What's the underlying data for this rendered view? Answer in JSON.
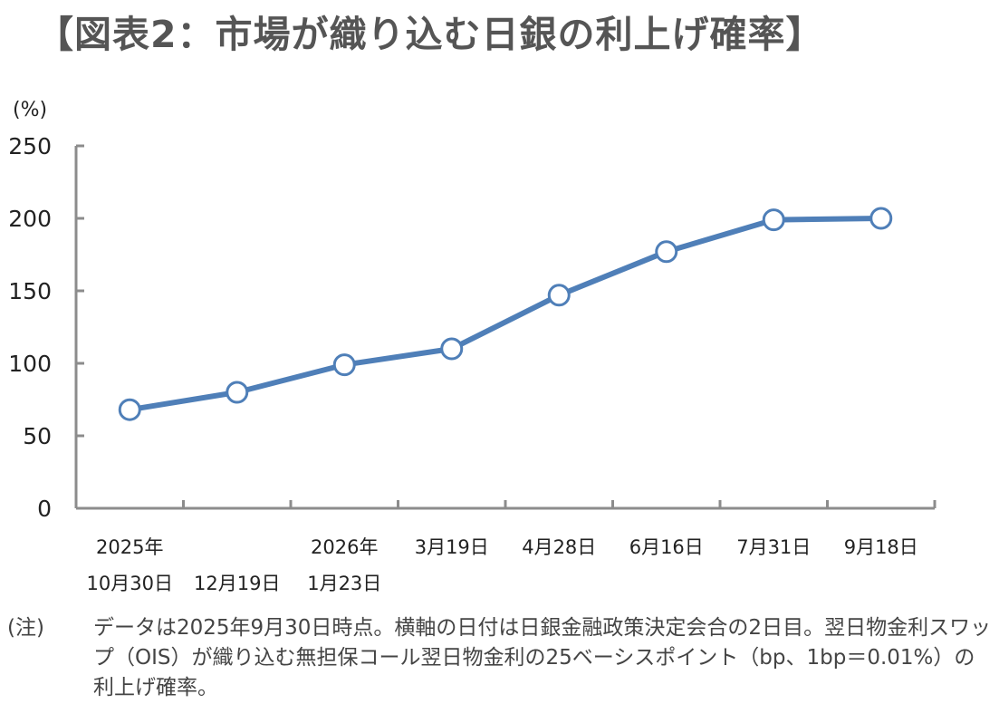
{
  "title": "【図表2：市場が織り込む日銀の利上げ確率】",
  "chart_data": {
    "type": "line",
    "title": "【図表2：市場が織り込む日銀の利上げ確率】",
    "ylabel": "(%)",
    "xlabel": "",
    "ylim": [
      0,
      250
    ],
    "yticks": [
      0,
      50,
      100,
      150,
      200,
      250
    ],
    "grid": false,
    "legend": "none",
    "categories": [
      [
        "2025年",
        "10月30日"
      ],
      [
        "",
        "12月19日"
      ],
      [
        "2026年",
        "1月23日"
      ],
      [
        "3月19日",
        ""
      ],
      [
        "4月28日",
        ""
      ],
      [
        "6月16日",
        ""
      ],
      [
        "7月31日",
        ""
      ],
      [
        "9月18日",
        ""
      ]
    ],
    "series": [
      {
        "values": [
          68,
          80,
          99,
          110,
          147,
          177,
          199,
          200
        ],
        "color": "#4f7fb8"
      }
    ]
  },
  "note": {
    "label": "(注)",
    "text": "データは2025年9月30日時点。横軸の日付は日銀金融政策決定会合の2日目。翌日物金利スワップ（OIS）が織り込む無担保コール翌日物金利の25ベーシスポイント（bp、1bp＝0.01%）の利上げ確率。"
  },
  "colors": {
    "line": "#4f7fb8",
    "axis": "#8c8c8c",
    "title": "#555555"
  }
}
